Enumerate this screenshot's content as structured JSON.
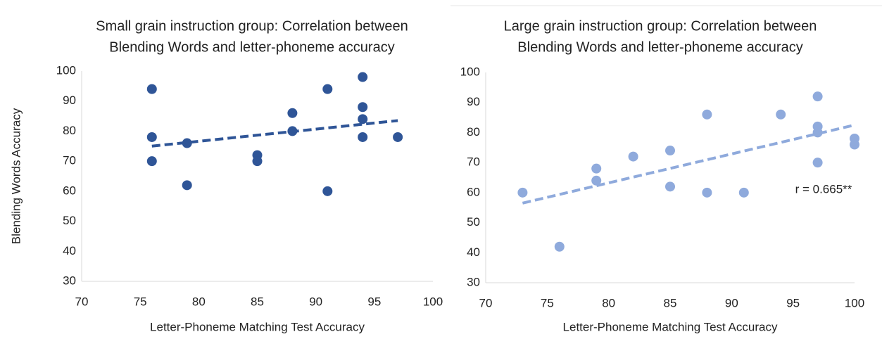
{
  "chart_data": [
    {
      "type": "scatter",
      "title": [
        "Small grain instruction group: Correlation between",
        "Blending Words and letter-phoneme accuracy"
      ],
      "x_label": "Letter-Phoneme Matching Test Accuracy",
      "y_label": "Blending Words Accuracy",
      "xlim": [
        70,
        100
      ],
      "xticks": [
        70,
        75,
        80,
        85,
        90,
        95,
        100
      ],
      "ylim": [
        30,
        100
      ],
      "yticks": [
        30,
        40,
        50,
        60,
        70,
        80,
        90,
        100
      ],
      "series": [
        {
          "color": "#2f5597",
          "x": [
            76,
            76,
            76,
            79,
            79,
            85,
            85,
            88,
            88,
            91,
            91,
            94,
            94,
            94,
            94,
            97
          ],
          "values": [
            94,
            78,
            70,
            76,
            62,
            72,
            70,
            86,
            80,
            94,
            60,
            98,
            88,
            84,
            78,
            78
          ]
        }
      ],
      "trendline": {
        "color": "#2f5597",
        "x": [
          76,
          97
        ],
        "values": [
          75,
          83.5
        ]
      }
    },
    {
      "type": "scatter",
      "title": [
        "Large grain instruction group: Correlation between",
        "Blending Words and letter-phoneme accuracy"
      ],
      "x_label": "Letter-Phoneme Matching Test Accuracy",
      "annotation": "r = 0.665**",
      "xlim": [
        70,
        100
      ],
      "xticks": [
        70,
        75,
        80,
        85,
        90,
        95,
        100
      ],
      "ylim": [
        30,
        100
      ],
      "yticks": [
        30,
        40,
        50,
        60,
        70,
        80,
        90,
        100
      ],
      "series": [
        {
          "color": "#8faadc",
          "x": [
            73,
            76,
            79,
            79,
            82,
            85,
            85,
            88,
            88,
            91,
            94,
            97,
            97,
            97,
            97,
            100,
            100
          ],
          "values": [
            60,
            42,
            68,
            64,
            72,
            74,
            62,
            86,
            60,
            60,
            86,
            92,
            82,
            80,
            70,
            78,
            76
          ]
        }
      ],
      "trendline": {
        "color": "#8faadc",
        "x": [
          73,
          100
        ],
        "values": [
          56.5,
          82.5
        ]
      }
    }
  ]
}
